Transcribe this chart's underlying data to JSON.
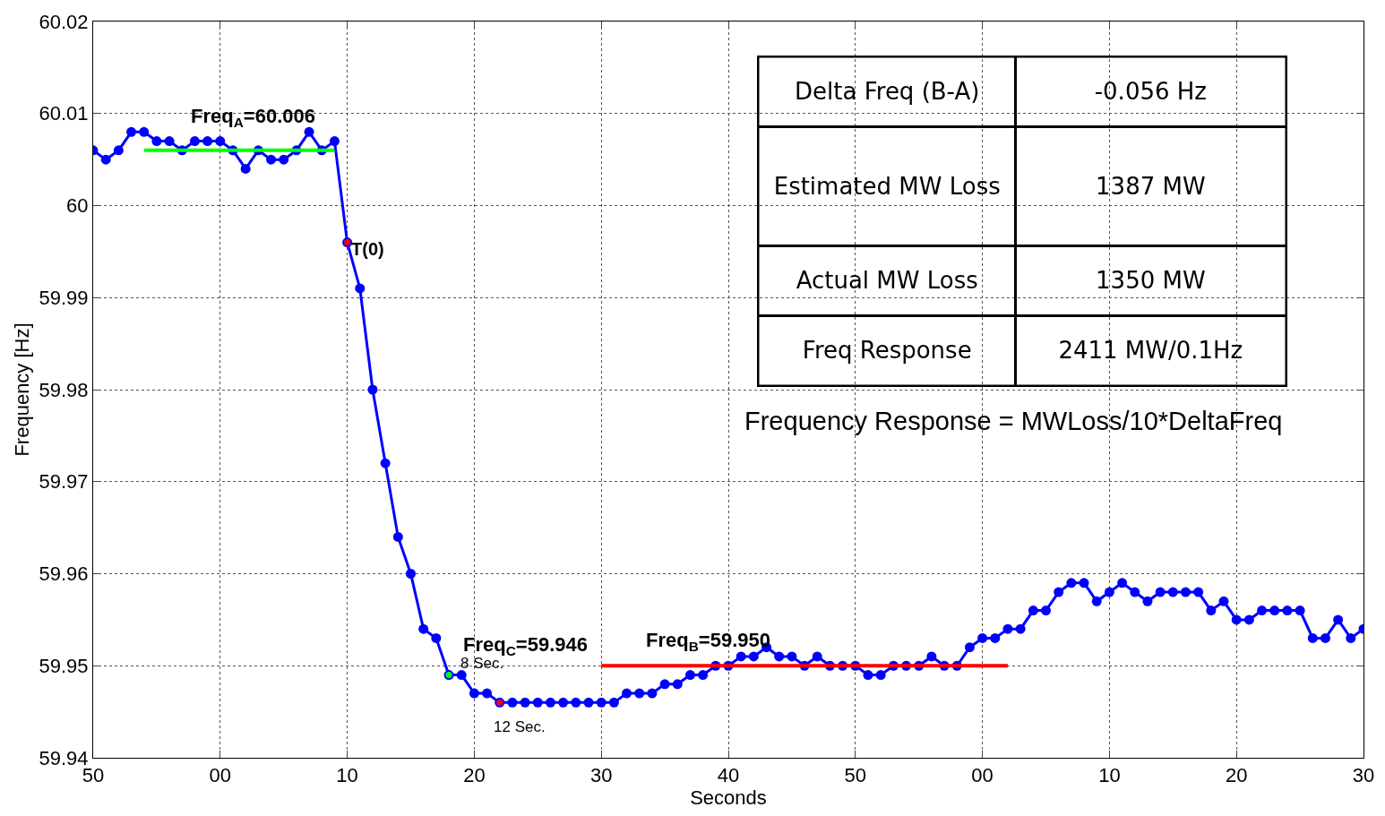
{
  "chart_data": {
    "type": "line",
    "xlabel": "Seconds",
    "ylabel": "Frequency [Hz]",
    "categories": [
      "50",
      null,
      null,
      null,
      null,
      null,
      null,
      null,
      null,
      null,
      "00",
      null,
      null,
      null,
      null,
      null,
      null,
      null,
      null,
      null,
      "10",
      null,
      null,
      null,
      null,
      null,
      null,
      null,
      null,
      null,
      "20",
      null,
      null,
      null,
      null,
      null,
      null,
      null,
      null,
      null,
      "30",
      null,
      null,
      null,
      null,
      null,
      null,
      null,
      null,
      null,
      "40",
      null,
      null,
      null,
      null,
      null,
      null,
      null,
      null,
      null,
      "50",
      null,
      null,
      null,
      null,
      null,
      null,
      null,
      null,
      null,
      "00",
      null,
      null,
      null,
      null,
      null,
      null,
      null,
      null,
      null,
      "10",
      null,
      null,
      null,
      null,
      null,
      null,
      null,
      null,
      null,
      "20",
      null,
      null,
      null,
      null,
      null,
      null,
      null,
      null,
      null,
      "30"
    ],
    "ylim": [
      59.94,
      60.02
    ],
    "yticks": [
      59.94,
      59.95,
      59.96,
      59.97,
      59.98,
      59.99,
      60,
      60.01,
      60.02
    ],
    "grid": true,
    "marker": "circle",
    "line_style": "solid",
    "series": [
      {
        "color": "#0000ff",
        "values": [
          60.006,
          60.005,
          60.006,
          60.008,
          60.008,
          60.007,
          60.007,
          60.006,
          60.007,
          60.007,
          60.007,
          60.006,
          60.004,
          60.006,
          60.005,
          60.005,
          60.006,
          60.008,
          60.006,
          60.007,
          59.996,
          59.991,
          59.98,
          59.972,
          59.964,
          59.96,
          59.954,
          59.953,
          59.949,
          59.949,
          59.947,
          59.947,
          59.946,
          59.946,
          59.946,
          59.946,
          59.946,
          59.946,
          59.946,
          59.946,
          59.946,
          59.946,
          59.947,
          59.947,
          59.947,
          59.948,
          59.948,
          59.949,
          59.949,
          59.95,
          59.95,
          59.951,
          59.951,
          59.952,
          59.951,
          59.951,
          59.95,
          59.951,
          59.95,
          59.95,
          59.95,
          59.949,
          59.949,
          59.95,
          59.95,
          59.95,
          59.951,
          59.95,
          59.95,
          59.952,
          59.953,
          59.953,
          59.954,
          59.954,
          59.956,
          59.956,
          59.958,
          59.959,
          59.959,
          59.957,
          59.958,
          59.959,
          59.958,
          59.957,
          59.958,
          59.958,
          59.958,
          59.958,
          59.956,
          59.957,
          59.955,
          59.955,
          59.956,
          59.956,
          59.956,
          59.956,
          59.953,
          59.953,
          59.955,
          59.953,
          59.954
        ]
      },
      {
        "color": "#00ff00",
        "marker": "none",
        "values": [
          null,
          null,
          null,
          null,
          60.006,
          null,
          null,
          null,
          null,
          null,
          null,
          null,
          null,
          null,
          null,
          null,
          null,
          null,
          null,
          60.006,
          null,
          null,
          null,
          null,
          null,
          null,
          null,
          null,
          null,
          null,
          null,
          null,
          null,
          null,
          null,
          null,
          null,
          null,
          null,
          null,
          null,
          null,
          null,
          null,
          null,
          null,
          null,
          null,
          null,
          null,
          null,
          null,
          null,
          null,
          null,
          null,
          null,
          null,
          null,
          null,
          null,
          null,
          null,
          null,
          null,
          null,
          null,
          null,
          null,
          null,
          null,
          null,
          null,
          null,
          null,
          null,
          null,
          null,
          null,
          null,
          null,
          null,
          null,
          null,
          null,
          null,
          null,
          null,
          null,
          null,
          null,
          null,
          null,
          null,
          null,
          null,
          null,
          null,
          null,
          null,
          null
        ]
      },
      {
        "color": "#ff0000",
        "marker": "none",
        "values": [
          null,
          null,
          null,
          null,
          null,
          null,
          null,
          null,
          null,
          null,
          null,
          null,
          null,
          null,
          null,
          null,
          null,
          null,
          null,
          null,
          null,
          null,
          null,
          null,
          null,
          null,
          null,
          null,
          null,
          null,
          null,
          null,
          null,
          null,
          null,
          null,
          null,
          null,
          null,
          null,
          59.95,
          null,
          null,
          null,
          null,
          null,
          null,
          null,
          null,
          null,
          null,
          null,
          null,
          null,
          null,
          null,
          null,
          null,
          null,
          null,
          null,
          null,
          null,
          null,
          null,
          null,
          null,
          null,
          null,
          null,
          null,
          null,
          59.95,
          null,
          null,
          null,
          null,
          null,
          null,
          null,
          null,
          null,
          null,
          null,
          null,
          null,
          null,
          null,
          null,
          null,
          null,
          null,
          null,
          null,
          null,
          null,
          null,
          null,
          null,
          null,
          null
        ]
      },
      {
        "type": "scatter",
        "color": "#ff0000",
        "values": [
          null,
          null,
          null,
          null,
          null,
          null,
          null,
          null,
          null,
          null,
          null,
          null,
          null,
          null,
          null,
          null,
          null,
          null,
          null,
          null,
          59.996,
          null,
          null,
          null,
          null,
          null,
          null,
          null,
          null,
          null,
          null,
          null,
          59.946,
          null,
          null,
          null,
          null,
          null,
          null,
          null,
          null,
          null,
          null,
          null,
          null,
          null,
          null,
          null,
          null,
          null,
          null,
          null,
          null,
          null,
          null,
          null,
          null,
          null,
          null,
          null,
          null,
          null,
          null,
          null,
          null,
          null,
          null,
          null,
          null,
          null,
          null,
          null,
          null,
          null,
          null,
          null,
          null,
          null,
          null,
          null,
          null,
          null,
          null,
          null,
          null,
          null,
          null,
          null,
          null,
          null,
          null,
          null,
          null,
          null,
          null,
          null,
          null,
          null,
          null,
          null,
          null
        ]
      },
      {
        "type": "scatter",
        "color": "#00ff00",
        "values": [
          null,
          null,
          null,
          null,
          null,
          null,
          null,
          null,
          null,
          null,
          null,
          null,
          null,
          null,
          null,
          null,
          null,
          null,
          null,
          null,
          null,
          null,
          null,
          null,
          null,
          null,
          null,
          null,
          59.949,
          null,
          null,
          null,
          null,
          null,
          null,
          null,
          null,
          null,
          null,
          null,
          null,
          null,
          null,
          null,
          null,
          null,
          null,
          null,
          null,
          null,
          null,
          null,
          null,
          null,
          null,
          null,
          null,
          null,
          null,
          null,
          null,
          null,
          null,
          null,
          null,
          null,
          null,
          null,
          null,
          null,
          null,
          null,
          null,
          null,
          null,
          null,
          null,
          null,
          null,
          null,
          null,
          null,
          null,
          null,
          null,
          null,
          null,
          null,
          null,
          null,
          null,
          null,
          null,
          null,
          null,
          null,
          null,
          null,
          null,
          null,
          null
        ]
      }
    ],
    "annotations": [
      "Freq$_{A}$=60.006",
      "T(0)",
      "Freq$_{C}$=59.946",
      "8 Sec.",
      "12 Sec.",
      "Freq$_{B}$=59.950",
      "Delta Freq (B-A)",
      "-0.056 Hz",
      "Estimated MW Loss",
      "1387 MW",
      "Actual MW Loss",
      "1350 MW",
      "Freq Response",
      "2411 MW/0.1Hz",
      "Frequency Response = MWLoss/10*DeltaFreq"
    ]
  }
}
